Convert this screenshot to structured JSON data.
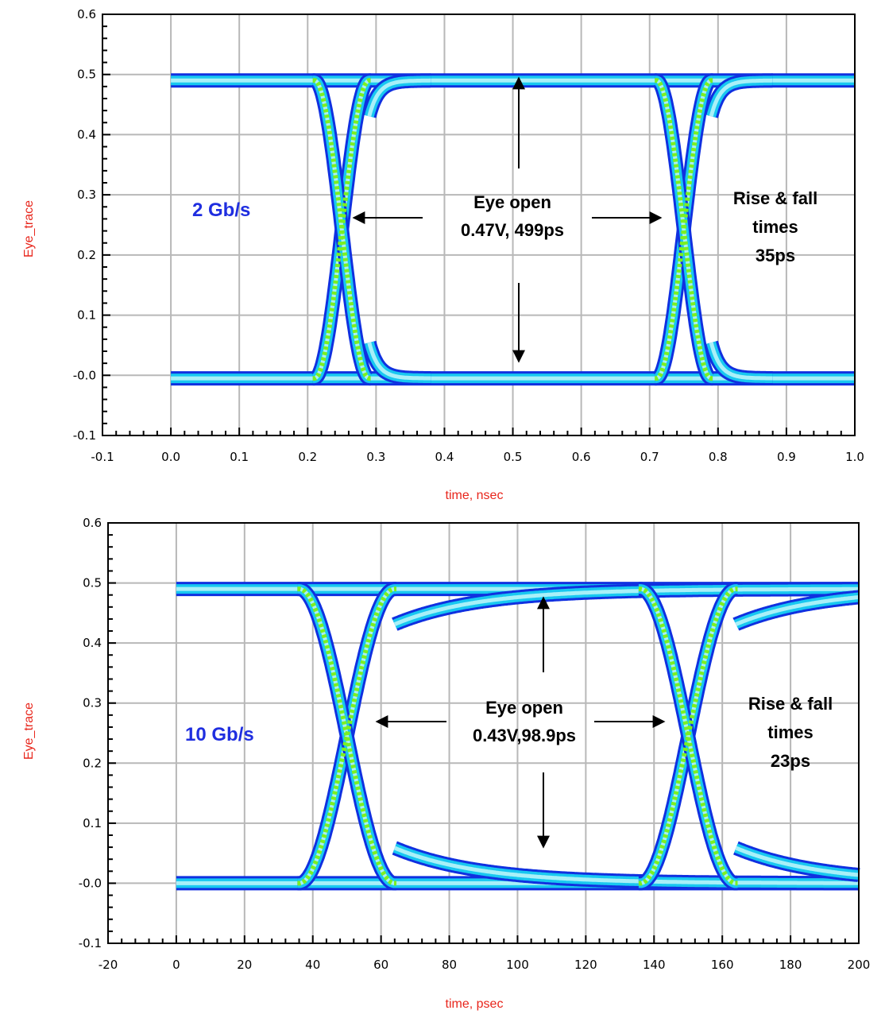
{
  "colors": {
    "axis_label": "#e8261c",
    "rate_label": "#1f2ee0",
    "trace_outer": "#1030e0",
    "trace_mid": "#18c8f0",
    "trace_inner": "#a8f0f8",
    "crossing": "#7cf020",
    "grid": "#b8b8b8"
  },
  "chart_data": [
    {
      "type": "line",
      "subtype": "eye-diagram",
      "xlabel": "time, nsec",
      "ylabel": "Eye_trace",
      "xlim": [
        -0.1,
        1.0
      ],
      "ylim": [
        -0.1,
        0.6
      ],
      "x_ticks": [
        "-0.1",
        "0.0",
        "0.1",
        "0.2",
        "0.3",
        "0.4",
        "0.5",
        "0.6",
        "0.7",
        "0.8",
        "0.9",
        "1.0"
      ],
      "y_ticks": [
        "-0.1",
        "-0.0",
        "0.1",
        "0.2",
        "0.3",
        "0.4",
        "0.5",
        "0.6"
      ],
      "x_tick_values": [
        -0.1,
        0.0,
        0.1,
        0.2,
        0.3,
        0.4,
        0.5,
        0.6,
        0.7,
        0.8,
        0.9,
        1.0
      ],
      "y_tick_values": [
        -0.1,
        0.0,
        0.1,
        0.2,
        0.3,
        0.4,
        0.5,
        0.6
      ],
      "grid": true,
      "eye": {
        "x_start": 0.0,
        "x_end": 1.0,
        "high": 0.49,
        "low": -0.005,
        "crossings": [
          0.25,
          0.75
        ],
        "transition_half_width": 0.04,
        "tail_length": 0.03
      },
      "annotations": {
        "rate": "2 Gb/s",
        "eye_open_title": "Eye open",
        "eye_open_value": "0.47V, 499ps",
        "rise_fall_1": "Rise & fall",
        "rise_fall_2": "times",
        "rise_fall_3": "35ps"
      }
    },
    {
      "type": "line",
      "subtype": "eye-diagram",
      "xlabel": "time, psec",
      "ylabel": "Eye_trace",
      "xlim": [
        -20,
        200
      ],
      "ylim": [
        -0.1,
        0.6
      ],
      "x_ticks": [
        "-20",
        "0",
        "20",
        "40",
        "60",
        "80",
        "100",
        "120",
        "140",
        "160",
        "180",
        "200"
      ],
      "y_ticks": [
        "-0.1",
        "-0.0",
        "0.1",
        "0.2",
        "0.3",
        "0.4",
        "0.5",
        "0.6"
      ],
      "x_tick_values": [
        -20,
        0,
        20,
        40,
        60,
        80,
        100,
        120,
        140,
        160,
        180,
        200
      ],
      "y_tick_values": [
        -0.1,
        0.0,
        0.1,
        0.2,
        0.3,
        0.4,
        0.5,
        0.6
      ],
      "grid": true,
      "eye": {
        "x_start": 0,
        "x_end": 200,
        "high": 0.49,
        "low": 0.0,
        "crossings": [
          50,
          150
        ],
        "transition_half_width": 14,
        "tail_length": 55
      },
      "annotations": {
        "rate": "10 Gb/s",
        "eye_open_title": "Eye open",
        "eye_open_value": "0.43V,98.9ps",
        "rise_fall_1": "Rise & fall",
        "rise_fall_2": "times",
        "rise_fall_3": "23ps"
      }
    }
  ]
}
